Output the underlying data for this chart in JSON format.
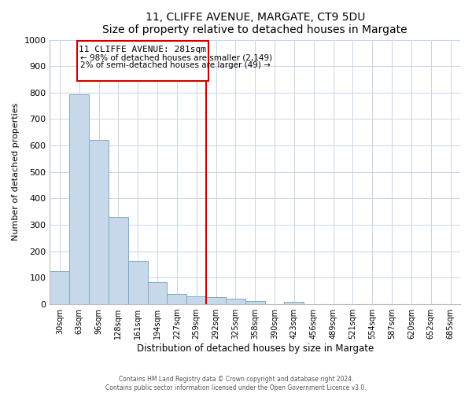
{
  "title": "11, CLIFFE AVENUE, MARGATE, CT9 5DU",
  "subtitle": "Size of property relative to detached houses in Margate",
  "xlabel": "Distribution of detached houses by size in Margate",
  "ylabel": "Number of detached properties",
  "categories": [
    "30sqm",
    "63sqm",
    "96sqm",
    "128sqm",
    "161sqm",
    "194sqm",
    "227sqm",
    "259sqm",
    "292sqm",
    "325sqm",
    "358sqm",
    "390sqm",
    "423sqm",
    "456sqm",
    "489sqm",
    "521sqm",
    "554sqm",
    "587sqm",
    "620sqm",
    "652sqm",
    "685sqm"
  ],
  "bar_heights": [
    125,
    795,
    620,
    330,
    163,
    82,
    40,
    30,
    27,
    20,
    12,
    0,
    10,
    0,
    0,
    0,
    0,
    0,
    0,
    0,
    0
  ],
  "bar_color": "#c8d8eb",
  "bar_edge_color": "#7aaac8",
  "ylim": [
    0,
    1000
  ],
  "yticks": [
    0,
    100,
    200,
    300,
    400,
    500,
    600,
    700,
    800,
    900,
    1000
  ],
  "vline_color": "#cc0000",
  "vline_index": 8,
  "annotation_title": "11 CLIFFE AVENUE: 281sqm",
  "annotation_line1": "← 98% of detached houses are smaller (2,149)",
  "annotation_line2": "2% of semi-detached houses are larger (49) →",
  "annotation_box_color": "#cc0000",
  "footer_line1": "Contains HM Land Registry data © Crown copyright and database right 2024.",
  "footer_line2": "Contains public sector information licensed under the Open Government Licence v3.0.",
  "bg_color": "#ffffff",
  "grid_color": "#c8d4e8"
}
